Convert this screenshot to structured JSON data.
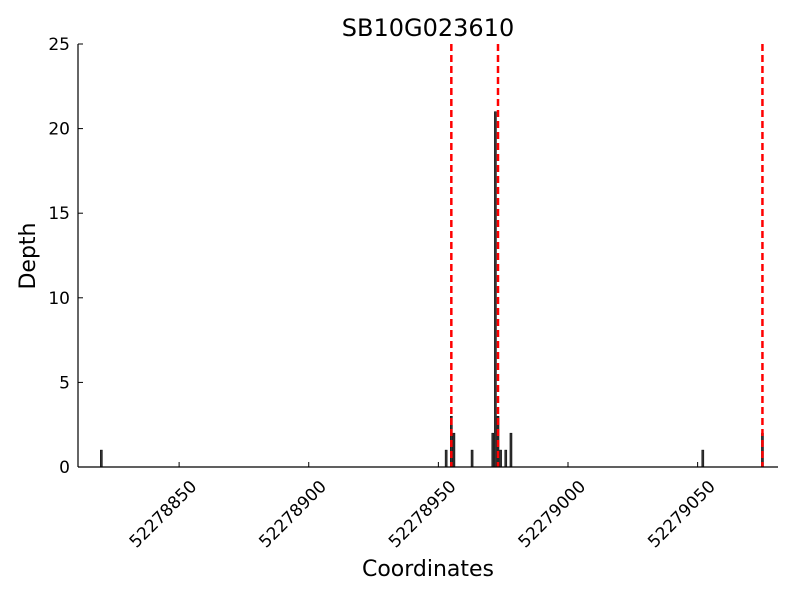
{
  "chart_data": {
    "type": "bar",
    "title": "SB10G023610",
    "xlabel": "Coordinates",
    "ylabel": "Depth",
    "xlim": [
      52278811,
      52279081
    ],
    "ylim": [
      0,
      25
    ],
    "grid": false,
    "xticks": [
      52278850,
      52278900,
      52278950,
      52279000,
      52279050
    ],
    "xtick_labels": [
      "52278850",
      "52278900",
      "52278950",
      "52279000",
      "52279050"
    ],
    "yticks": [
      0,
      5,
      10,
      15,
      20,
      25
    ],
    "ytick_labels": [
      "0",
      "5",
      "10",
      "15",
      "20",
      "25"
    ],
    "bar_color": "#333333",
    "bars": [
      {
        "x": 52278820,
        "depth": 1
      },
      {
        "x": 52278953,
        "depth": 1
      },
      {
        "x": 52278955,
        "depth": 3
      },
      {
        "x": 52278956,
        "depth": 2
      },
      {
        "x": 52278963,
        "depth": 1
      },
      {
        "x": 52278971,
        "depth": 2
      },
      {
        "x": 52278972,
        "depth": 21
      },
      {
        "x": 52278973,
        "depth": 3
      },
      {
        "x": 52278974,
        "depth": 1
      },
      {
        "x": 52278976,
        "depth": 1
      },
      {
        "x": 52278978,
        "depth": 2
      },
      {
        "x": 52279052,
        "depth": 1
      },
      {
        "x": 52279075,
        "depth": 2
      }
    ],
    "vlines": {
      "color": "#ff0000",
      "style": "dashed",
      "x": [
        52278955,
        52278973,
        52279075
      ]
    }
  }
}
